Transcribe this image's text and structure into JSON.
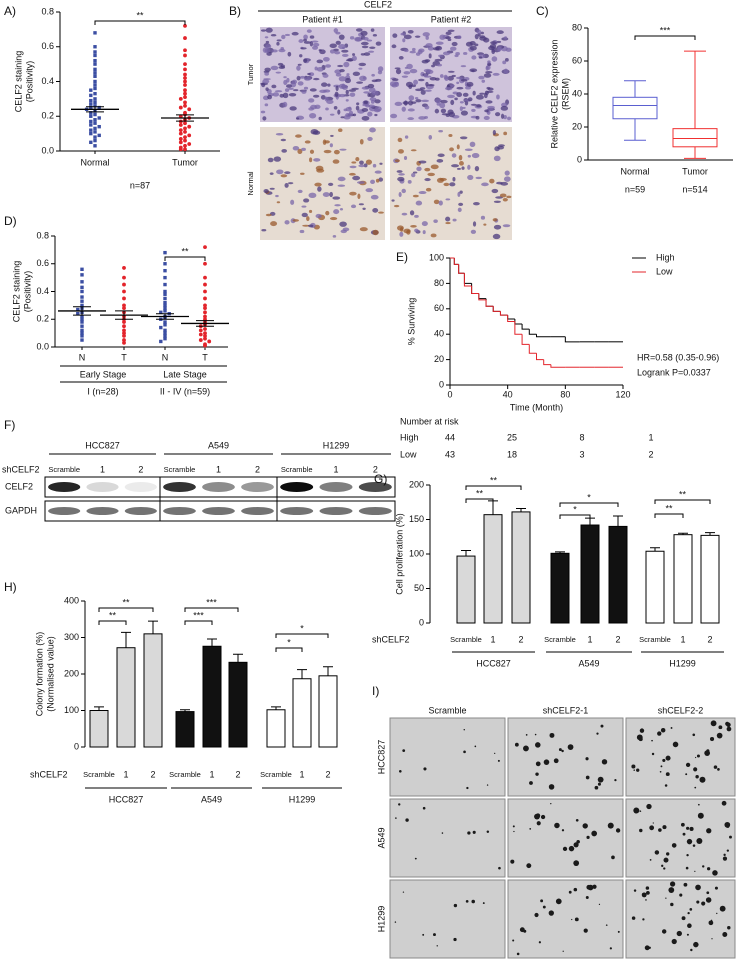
{
  "chart_data": [
    {
      "type": "dotplot",
      "panel": "A)",
      "ylabel": [
        "CELF2 staining",
        "(Positivity)"
      ],
      "ylim": [
        0,
        0.8
      ],
      "yticks": [
        {
          "value": 0,
          "label": "0.0"
        },
        0.2,
        0.4,
        0.6,
        0.8
      ],
      "categories": [
        "Normal",
        "Tumor"
      ],
      "groups": [
        {
          "color": "#3b4ea3",
          "marker": "square",
          "mean": 0.24,
          "sem": 0.015,
          "values": [
            0.68,
            0.6,
            0.57,
            0.55,
            0.52,
            0.5,
            0.47,
            0.45,
            0.43,
            0.4,
            0.38,
            0.36,
            0.35,
            0.33,
            0.32,
            0.3,
            0.29,
            0.28,
            0.27,
            0.26,
            0.25,
            0.25,
            0.24,
            0.23,
            0.22,
            0.21,
            0.2,
            0.19,
            0.18,
            0.17,
            0.16,
            0.15,
            0.14,
            0.13,
            0.12,
            0.11,
            0.1,
            0.09,
            0.08,
            0.06,
            0.05,
            0.03
          ]
        },
        {
          "color": "#e3242b",
          "marker": "circle",
          "mean": 0.19,
          "sem": 0.018,
          "values": [
            0.72,
            0.65,
            0.58,
            0.55,
            0.5,
            0.47,
            0.44,
            0.42,
            0.4,
            0.38,
            0.35,
            0.33,
            0.31,
            0.3,
            0.28,
            0.26,
            0.25,
            0.24,
            0.22,
            0.21,
            0.2,
            0.19,
            0.18,
            0.17,
            0.16,
            0.15,
            0.14,
            0.13,
            0.12,
            0.11,
            0.1,
            0.09,
            0.08,
            0.07,
            0.06,
            0.05,
            0.04,
            0.03,
            0.02,
            0.01,
            0.01
          ]
        }
      ],
      "note": "n=87",
      "significance": [
        {
          "from": 0,
          "to": 1,
          "label": "**"
        }
      ]
    },
    {
      "type": "box",
      "panel": "C)",
      "ylabel": [
        "Relative CELF2 expression",
        "(RSEM)"
      ],
      "ylim": [
        0,
        80
      ],
      "yticks": [
        0,
        20,
        40,
        60,
        80
      ],
      "categories": [
        "Normal",
        "Tumor"
      ],
      "notes": [
        "n=59",
        "n=514"
      ],
      "boxes": [
        {
          "color": "#5a5fd0",
          "min": 12,
          "q1": 25,
          "median": 33,
          "q3": 38,
          "max": 48
        },
        {
          "color": "#f03030",
          "min": 1,
          "q1": 8,
          "median": 13,
          "q3": 19,
          "max": 66
        }
      ],
      "significance": [
        {
          "from": 0,
          "to": 1,
          "label": "***"
        }
      ]
    },
    {
      "type": "dotplot",
      "panel": "D)",
      "ylabel": [
        "CELF2 staining",
        "(Positivity)"
      ],
      "ylim": [
        0,
        0.8
      ],
      "yticks": [
        {
          "value": 0,
          "label": "0.0"
        },
        0.2,
        0.4,
        0.6,
        0.8
      ],
      "categories": [
        "N",
        "T",
        "N",
        "T"
      ],
      "groups": [
        {
          "color": "#3b4ea3",
          "marker": "square",
          "mean": 0.26,
          "sem": 0.03,
          "values": [
            0.56,
            0.52,
            0.47,
            0.43,
            0.4,
            0.36,
            0.33,
            0.3,
            0.28,
            0.27,
            0.25,
            0.24,
            0.22,
            0.2,
            0.18,
            0.15,
            0.12,
            0.1,
            0.08,
            0.05
          ]
        },
        {
          "color": "#e3242b",
          "marker": "circle",
          "mean": 0.23,
          "sem": 0.03,
          "values": [
            0.57,
            0.5,
            0.45,
            0.4,
            0.35,
            0.3,
            0.28,
            0.25,
            0.22,
            0.2,
            0.18,
            0.15,
            0.12,
            0.1,
            0.08,
            0.05,
            0.03
          ]
        },
        {
          "color": "#3b4ea3",
          "marker": "square",
          "mean": 0.22,
          "sem": 0.02,
          "values": [
            0.68,
            0.6,
            0.55,
            0.5,
            0.45,
            0.4,
            0.38,
            0.35,
            0.32,
            0.3,
            0.28,
            0.26,
            0.25,
            0.24,
            0.22,
            0.21,
            0.2,
            0.18,
            0.16,
            0.14,
            0.12,
            0.1,
            0.08,
            0.06,
            0.04
          ]
        },
        {
          "color": "#e3242b",
          "marker": "circle",
          "mean": 0.17,
          "sem": 0.02,
          "values": [
            0.72,
            0.6,
            0.5,
            0.45,
            0.4,
            0.35,
            0.3,
            0.28,
            0.25,
            0.22,
            0.2,
            0.18,
            0.16,
            0.15,
            0.13,
            0.12,
            0.1,
            0.09,
            0.08,
            0.06,
            0.05,
            0.04,
            0.02,
            0.01
          ]
        }
      ],
      "stages": [
        {
          "name": "Early Stage",
          "note": "I (n=28)"
        },
        {
          "name": "Late Stage",
          "note": "II - IV (n=59)"
        }
      ],
      "significance": [
        {
          "from": 2,
          "to": 3,
          "label": "**"
        }
      ]
    },
    {
      "type": "km",
      "panel": "E)",
      "ylabel": [
        "% Surviving"
      ],
      "xlabel": "Time (Month)",
      "xlim": [
        0,
        120
      ],
      "xticks": [
        0,
        40,
        80,
        120
      ],
      "ylim": [
        0,
        100
      ],
      "yticks": [
        0,
        20,
        40,
        60,
        80,
        100
      ],
      "series": [
        {
          "name": "High",
          "color": "#000000",
          "x": [
            0,
            3,
            6,
            10,
            15,
            20,
            25,
            30,
            35,
            40,
            45,
            50,
            55,
            60,
            70,
            80,
            90,
            100,
            110,
            120
          ],
          "values": [
            100,
            95,
            88,
            80,
            72,
            68,
            62,
            58,
            55,
            52,
            48,
            44,
            40,
            38,
            38,
            34,
            34,
            34,
            34,
            34
          ]
        },
        {
          "name": "Low",
          "color": "#e3242b",
          "x": [
            0,
            3,
            6,
            10,
            15,
            20,
            25,
            30,
            35,
            40,
            45,
            50,
            55,
            60,
            65,
            70,
            80,
            90,
            100,
            110,
            120
          ],
          "values": [
            100,
            95,
            88,
            78,
            72,
            67,
            62,
            58,
            55,
            50,
            40,
            32,
            25,
            20,
            16,
            14,
            14,
            14,
            14,
            14,
            14
          ]
        }
      ],
      "annotations": [
        "HR=0.58 (0.35-0.96)",
        "Logrank P=0.0337"
      ],
      "risk_table": {
        "title": "Number at risk",
        "rows": [
          {
            "name": "High",
            "values": [
              44,
              25,
              8,
              1
            ]
          },
          {
            "name": "Low",
            "values": [
              43,
              18,
              3,
              2
            ]
          }
        ]
      }
    },
    {
      "type": "groupedbar",
      "panel": "G)",
      "ylabel": [
        "Cell proliferation (%)"
      ],
      "xlabel": "shCELF2",
      "ylim": [
        0,
        200
      ],
      "yticks": [
        0,
        50,
        100,
        150,
        200
      ],
      "categories": [
        "Scramble",
        "1",
        "2"
      ],
      "groups": [
        {
          "name": "HCC827",
          "color": "#d9d9d9",
          "values": [
            97,
            157,
            161
          ],
          "errors": [
            8,
            20,
            5
          ]
        },
        {
          "name": "A549",
          "color": "#111111",
          "values": [
            101,
            142,
            140
          ],
          "errors": [
            2,
            10,
            15
          ]
        },
        {
          "name": "H1299",
          "color": "#ffffff",
          "values": [
            104,
            128,
            127
          ],
          "errors": [
            5,
            2,
            4
          ]
        }
      ],
      "significance": [
        {
          "group": 0,
          "from": 0,
          "to": 1,
          "label": "**"
        },
        {
          "group": 0,
          "from": 0,
          "to": 2,
          "label": "**"
        },
        {
          "group": 1,
          "from": 0,
          "to": 1,
          "label": "*"
        },
        {
          "group": 1,
          "from": 0,
          "to": 2,
          "label": "*"
        },
        {
          "group": 2,
          "from": 0,
          "to": 1,
          "label": "**"
        },
        {
          "group": 2,
          "from": 0,
          "to": 2,
          "label": "**"
        }
      ]
    },
    {
      "type": "groupedbar",
      "panel": "H)",
      "ylabel": [
        "Colony formation (%)",
        "(Normalised value)"
      ],
      "xlabel": "shCELF2",
      "ylim": [
        0,
        400
      ],
      "yticks": [
        0,
        100,
        200,
        300,
        400
      ],
      "categories": [
        "Scramble",
        "1",
        "2"
      ],
      "groups": [
        {
          "name": "HCC827",
          "color": "#d9d9d9",
          "values": [
            100,
            272,
            310
          ],
          "errors": [
            10,
            42,
            35
          ]
        },
        {
          "name": "A549",
          "color": "#111111",
          "values": [
            97,
            276,
            232
          ],
          "errors": [
            5,
            20,
            22
          ]
        },
        {
          "name": "H1299",
          "color": "#ffffff",
          "values": [
            102,
            187,
            195
          ],
          "errors": [
            8,
            25,
            25
          ]
        }
      ],
      "significance": [
        {
          "group": 0,
          "from": 0,
          "to": 1,
          "label": "**"
        },
        {
          "group": 0,
          "from": 0,
          "to": 2,
          "label": "**"
        },
        {
          "group": 1,
          "from": 0,
          "to": 1,
          "label": "***"
        },
        {
          "group": 1,
          "from": 0,
          "to": 2,
          "label": "***"
        },
        {
          "group": 2,
          "from": 0,
          "to": 1,
          "label": "*"
        },
        {
          "group": 2,
          "from": 0,
          "to": 2,
          "label": "*"
        }
      ]
    }
  ],
  "ihc": {
    "panel": "B)",
    "title": "CELF2",
    "columns": [
      "Patient #1",
      "Patient #2"
    ],
    "rows": [
      "Tumor",
      "Normal"
    ]
  },
  "western_blot": {
    "panel": "F)",
    "cell_lines": [
      "HCC827",
      "A549",
      "H1299"
    ],
    "condition_label": "shCELF2",
    "lanes": [
      "Scramble",
      "1",
      "2"
    ],
    "rows": [
      "CELF2",
      "GAPDH"
    ]
  },
  "colony_images": {
    "panel": "I)",
    "columns": [
      "Scramble",
      "shCELF2-1",
      "shCELF2-2"
    ],
    "rows": [
      "HCC827",
      "A549",
      "H1299"
    ]
  }
}
